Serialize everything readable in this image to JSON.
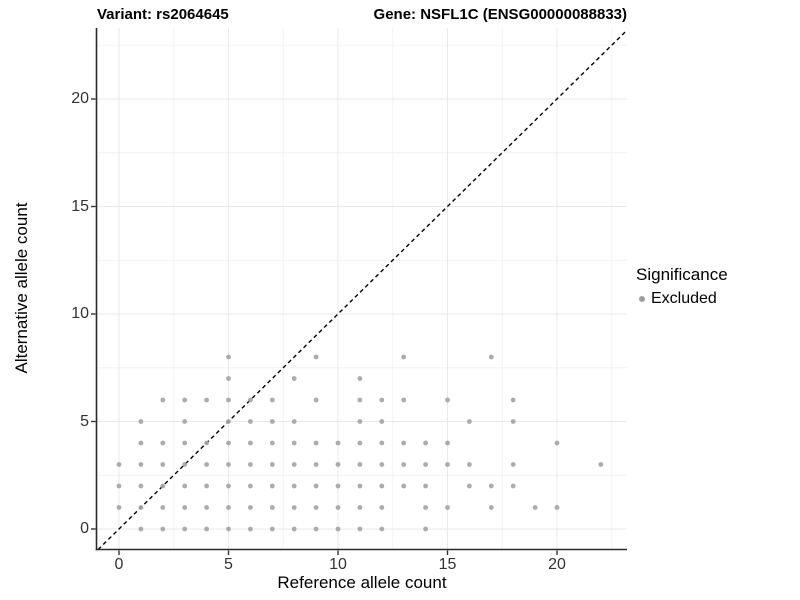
{
  "figure": {
    "title_left": "Variant: rs2064645",
    "title_right": "Gene: NSFL1C (ENSG00000088833)"
  },
  "axes": {
    "x": {
      "title": "Reference allele count",
      "tick_values": [
        0,
        5,
        10,
        15,
        20
      ],
      "tick_labels": [
        "0",
        "5",
        "10",
        "15",
        "20"
      ],
      "minor_values": [
        2.5,
        7.5,
        12.5,
        17.5,
        22.5
      ],
      "range": [
        -1.03,
        23.2
      ]
    },
    "y": {
      "title": "Alternative allele count",
      "tick_values": [
        0,
        5,
        10,
        15,
        20
      ],
      "tick_labels": [
        "0",
        "5",
        "10",
        "15",
        "20"
      ],
      "minor_values": [
        2.5,
        7.5,
        12.5,
        17.5,
        22.5
      ],
      "range": [
        -0.95,
        23.25
      ]
    }
  },
  "legend": {
    "title": "Significance",
    "items": [
      {
        "label": "Excluded",
        "color": "#9e9e9e"
      }
    ]
  },
  "chart_data": {
    "type": "scatter",
    "title": "Variant: rs2064645 / Gene: NSFL1C (ENSG00000088833)",
    "xlabel": "Reference allele count",
    "ylabel": "Alternative allele count",
    "xlim": [
      -1.03,
      23.2
    ],
    "ylim": [
      -0.95,
      23.25
    ],
    "grid": true,
    "legend_position": "right",
    "identity_line": {
      "style": "dashed",
      "from": [
        -1,
        -1
      ],
      "to": [
        23.2,
        23.2
      ],
      "color": "#000000"
    },
    "series": [
      {
        "name": "Excluded",
        "color": "#a3a3a3",
        "points": [
          [
            1,
            0
          ],
          [
            2,
            0
          ],
          [
            3,
            0
          ],
          [
            4,
            0
          ],
          [
            5,
            0
          ],
          [
            6,
            0
          ],
          [
            7,
            0
          ],
          [
            8,
            0
          ],
          [
            9,
            0
          ],
          [
            10,
            0
          ],
          [
            11,
            0
          ],
          [
            12,
            0
          ],
          [
            14,
            0
          ],
          [
            0,
            1
          ],
          [
            1,
            1
          ],
          [
            2,
            1
          ],
          [
            3,
            1
          ],
          [
            4,
            1
          ],
          [
            5,
            1
          ],
          [
            6,
            1
          ],
          [
            7,
            1
          ],
          [
            8,
            1
          ],
          [
            9,
            1
          ],
          [
            10,
            1
          ],
          [
            11,
            1
          ],
          [
            12,
            1
          ],
          [
            14,
            1
          ],
          [
            15,
            1
          ],
          [
            17,
            1
          ],
          [
            19,
            1
          ],
          [
            20,
            1
          ],
          [
            0,
            2
          ],
          [
            1,
            2
          ],
          [
            2,
            2
          ],
          [
            3,
            2
          ],
          [
            4,
            2
          ],
          [
            5,
            2
          ],
          [
            6,
            2
          ],
          [
            7,
            2
          ],
          [
            8,
            2
          ],
          [
            9,
            2
          ],
          [
            10,
            2
          ],
          [
            11,
            2
          ],
          [
            12,
            2
          ],
          [
            13,
            2
          ],
          [
            14,
            2
          ],
          [
            16,
            2
          ],
          [
            17,
            2
          ],
          [
            18,
            2
          ],
          [
            0,
            3
          ],
          [
            1,
            3
          ],
          [
            2,
            3
          ],
          [
            3,
            3
          ],
          [
            4,
            3
          ],
          [
            5,
            3
          ],
          [
            6,
            3
          ],
          [
            7,
            3
          ],
          [
            8,
            3
          ],
          [
            9,
            3
          ],
          [
            10,
            3
          ],
          [
            11,
            3
          ],
          [
            12,
            3
          ],
          [
            13,
            3
          ],
          [
            14,
            3
          ],
          [
            15,
            3
          ],
          [
            16,
            3
          ],
          [
            18,
            3
          ],
          [
            22,
            3
          ],
          [
            1,
            4
          ],
          [
            2,
            4
          ],
          [
            3,
            4
          ],
          [
            4,
            4
          ],
          [
            5,
            4
          ],
          [
            6,
            4
          ],
          [
            7,
            4
          ],
          [
            8,
            4
          ],
          [
            9,
            4
          ],
          [
            10,
            4
          ],
          [
            11,
            4
          ],
          [
            12,
            4
          ],
          [
            13,
            4
          ],
          [
            14,
            4
          ],
          [
            15,
            4
          ],
          [
            20,
            4
          ],
          [
            1,
            5
          ],
          [
            3,
            5
          ],
          [
            5,
            5
          ],
          [
            6,
            5
          ],
          [
            7,
            5
          ],
          [
            8,
            5
          ],
          [
            11,
            5
          ],
          [
            12,
            5
          ],
          [
            16,
            5
          ],
          [
            18,
            5
          ],
          [
            2,
            6
          ],
          [
            3,
            6
          ],
          [
            4,
            6
          ],
          [
            5,
            6
          ],
          [
            6,
            6
          ],
          [
            7,
            6
          ],
          [
            9,
            6
          ],
          [
            11,
            6
          ],
          [
            12,
            6
          ],
          [
            13,
            6
          ],
          [
            15,
            6
          ],
          [
            18,
            6
          ],
          [
            5,
            7
          ],
          [
            8,
            7
          ],
          [
            11,
            7
          ],
          [
            5,
            8
          ],
          [
            9,
            8
          ],
          [
            13,
            8
          ],
          [
            17,
            8
          ]
        ]
      }
    ]
  },
  "colors": {
    "point": "#a3a3a3",
    "legend_point": "#9e9e9e",
    "grid_major": "#e9e9e9",
    "grid_minor": "#f4f4f4",
    "axis_line": "#2a2a2a",
    "tick_mark": "#333333",
    "tick_label": "#333333",
    "title_text": "#000000",
    "background": "#ffffff"
  }
}
